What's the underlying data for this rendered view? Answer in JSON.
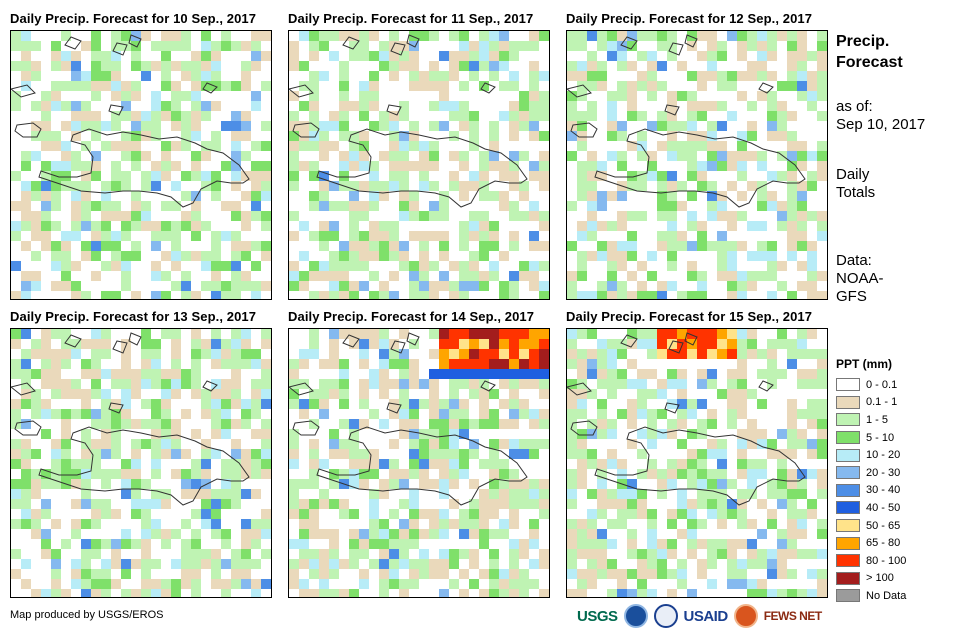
{
  "panels": [
    {
      "title": "Daily Precip. Forecast for 10 Sep., 2017",
      "seed": 11,
      "hotspot": "none"
    },
    {
      "title": "Daily Precip. Forecast for 11 Sep., 2017",
      "seed": 23,
      "hotspot": "none"
    },
    {
      "title": "Daily Precip. Forecast for 12 Sep., 2017",
      "seed": 37,
      "hotspot": "none"
    },
    {
      "title": "Daily Precip. Forecast for 13 Sep., 2017",
      "seed": 41,
      "hotspot": "none"
    },
    {
      "title": "Daily Precip. Forecast for 14 Sep., 2017",
      "seed": 53,
      "hotspot": "heavy"
    },
    {
      "title": "Daily Precip. Forecast for 15 Sep., 2017",
      "seed": 67,
      "hotspot": "moderate"
    }
  ],
  "sidebar": {
    "heading_line1": "Precip.",
    "heading_line2": "Forecast",
    "asof_label": "as of:",
    "asof_date": "Sep 10, 2017",
    "totals_line1": "Daily",
    "totals_line2": "Totals",
    "data_line1": "Data:",
    "data_line2": "NOAA-",
    "data_line3": "GFS"
  },
  "legend": {
    "title": "PPT (mm)",
    "items": [
      {
        "label": "0 - 0.1",
        "color": "#ffffff"
      },
      {
        "label": "0.1 - 1",
        "color": "#ead9bb"
      },
      {
        "label": "1 - 5",
        "color": "#bff3b3"
      },
      {
        "label": "5 - 10",
        "color": "#7fe06a"
      },
      {
        "label": "10 - 20",
        "color": "#b7ecf7"
      },
      {
        "label": "20 - 30",
        "color": "#85b9ef"
      },
      {
        "label": "30 - 40",
        "color": "#4d8ee6"
      },
      {
        "label": "40 - 50",
        "color": "#1f5fe0"
      },
      {
        "label": "50 - 65",
        "color": "#ffe38a"
      },
      {
        "label": "65 - 80",
        "color": "#ffa500"
      },
      {
        "label": "80 - 100",
        "color": "#ff3300"
      },
      {
        "label": "> 100",
        "color": "#a31d1d"
      },
      {
        "label": "No Data",
        "color": "#9b9b9b"
      }
    ]
  },
  "footer": {
    "credit": "Map produced by USGS/EROS",
    "logos": {
      "usgs": "USGS",
      "usaid": "USAID",
      "fewsnet": "FEWS NET"
    }
  }
}
